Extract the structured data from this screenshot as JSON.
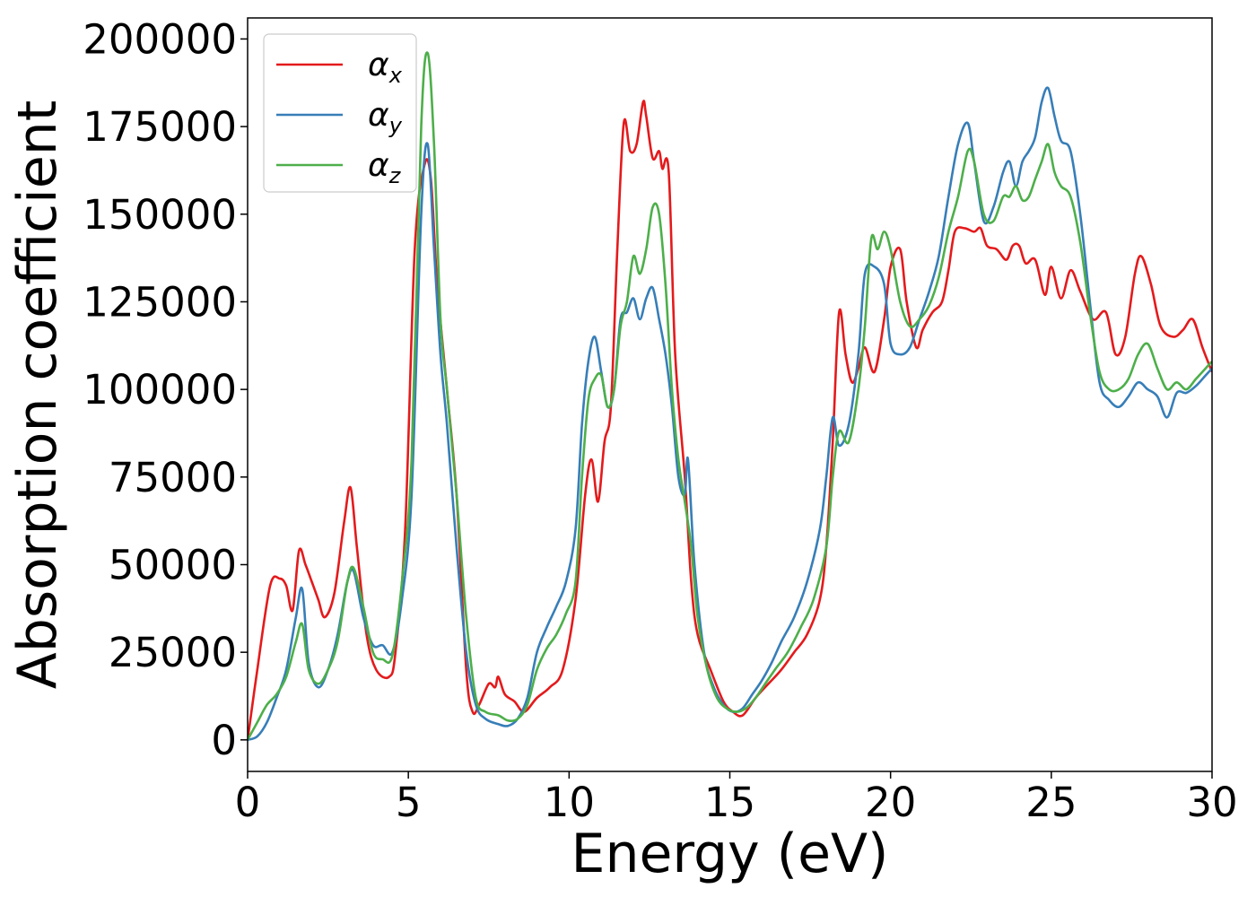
{
  "chart_data": {
    "type": "line",
    "title": "",
    "xlabel": "Energy (eV)",
    "ylabel": "Absorption coefficient",
    "xlim": [
      0,
      30
    ],
    "ylim": [
      -9000,
      206000
    ],
    "xticks": [
      0,
      5,
      10,
      15,
      20,
      25,
      30
    ],
    "yticks": [
      0,
      25000,
      50000,
      75000,
      100000,
      125000,
      150000,
      175000,
      200000
    ],
    "grid": false,
    "legend": {
      "placement": "top-left"
    },
    "series": [
      {
        "name": "αx",
        "symbol": "α",
        "subscript": "x",
        "color": "#e41a1c",
        "x": [
          0,
          0.3,
          0.7,
          1.0,
          1.2,
          1.4,
          1.6,
          1.8,
          2.0,
          2.2,
          2.4,
          2.7,
          3.0,
          3.2,
          3.4,
          3.7,
          4.0,
          4.4,
          4.6,
          4.9,
          5.2,
          5.5,
          5.7,
          5.9,
          6.2,
          6.5,
          6.8,
          7.0,
          7.2,
          7.5,
          7.7,
          7.8,
          8.0,
          8.3,
          8.6,
          9.0,
          9.4,
          9.8,
          10.2,
          10.5,
          10.7,
          10.9,
          11.1,
          11.3,
          11.5,
          11.7,
          11.9,
          12.1,
          12.3,
          12.4,
          12.6,
          12.8,
          12.9,
          13.1,
          13.3,
          13.6,
          13.8,
          14.0,
          14.4,
          14.8,
          15.1,
          15.4,
          15.8,
          16.2,
          16.6,
          17.0,
          17.4,
          17.8,
          18.0,
          18.2,
          18.4,
          18.6,
          18.8,
          19.0,
          19.2,
          19.5,
          19.8,
          20.0,
          20.3,
          20.5,
          20.8,
          21.0,
          21.3,
          21.6,
          21.8,
          22.0,
          22.3,
          22.6,
          22.8,
          23.0,
          23.3,
          23.6,
          23.8,
          24.0,
          24.2,
          24.5,
          24.8,
          25.0,
          25.3,
          25.6,
          25.9,
          26.3,
          26.7,
          27.0,
          27.3,
          27.6,
          27.8,
          28.1,
          28.4,
          28.8,
          29.1,
          29.4,
          29.7,
          30.0
        ],
        "y": [
          0,
          20000,
          44000,
          46000,
          44000,
          37000,
          54000,
          50000,
          45000,
          40000,
          35000,
          42000,
          62000,
          72000,
          55000,
          30000,
          20000,
          18000,
          25000,
          60000,
          140000,
          164000,
          160000,
          130000,
          100000,
          70000,
          20000,
          8000,
          10000,
          16000,
          15000,
          18000,
          13000,
          11000,
          8000,
          12000,
          15000,
          20000,
          40000,
          70000,
          80000,
          68000,
          85000,
          95000,
          140000,
          176000,
          168000,
          170000,
          182000,
          178000,
          166000,
          168000,
          163000,
          162000,
          110000,
          75000,
          45000,
          30000,
          20000,
          11000,
          8000,
          7000,
          12000,
          16000,
          20000,
          25000,
          30000,
          40000,
          55000,
          85000,
          122000,
          110000,
          102000,
          106000,
          112000,
          105000,
          120000,
          135000,
          140000,
          125000,
          112000,
          117000,
          122000,
          125000,
          134000,
          145000,
          146000,
          145000,
          146000,
          141000,
          140000,
          137000,
          141000,
          141000,
          136000,
          137000,
          127000,
          135000,
          126000,
          134000,
          128000,
          120000,
          122000,
          110000,
          115000,
          133000,
          138000,
          130000,
          118000,
          115000,
          117000,
          120000,
          112000,
          105000
        ]
      },
      {
        "name": "αy",
        "symbol": "α",
        "subscript": "y",
        "color": "#377eb8",
        "x": [
          0,
          0.3,
          0.6,
          0.9,
          1.2,
          1.5,
          1.7,
          1.9,
          2.2,
          2.5,
          2.8,
          3.1,
          3.3,
          3.6,
          3.9,
          4.2,
          4.5,
          4.8,
          5.1,
          5.4,
          5.6,
          5.8,
          6.0,
          6.2,
          6.5,
          6.8,
          7.1,
          7.4,
          7.8,
          8.1,
          8.4,
          8.7,
          9.0,
          9.3,
          9.6,
          9.9,
          10.2,
          10.4,
          10.6,
          10.8,
          11.0,
          11.2,
          11.4,
          11.6,
          11.8,
          12.0,
          12.2,
          12.4,
          12.6,
          12.8,
          13.0,
          13.2,
          13.4,
          13.6,
          13.7,
          13.9,
          14.2,
          14.5,
          14.8,
          15.1,
          15.4,
          15.7,
          16.0,
          16.3,
          16.6,
          17.0,
          17.4,
          17.8,
          18.0,
          18.2,
          18.4,
          18.7,
          19.0,
          19.2,
          19.5,
          19.8,
          20.0,
          20.3,
          20.6,
          20.9,
          21.2,
          21.5,
          21.8,
          22.1,
          22.4,
          22.6,
          22.9,
          23.2,
          23.5,
          23.7,
          23.9,
          24.1,
          24.3,
          24.5,
          24.7,
          24.9,
          25.1,
          25.3,
          25.6,
          25.9,
          26.2,
          26.5,
          26.8,
          27.1,
          27.4,
          27.7,
          28.0,
          28.3,
          28.6,
          28.9,
          29.2,
          29.5,
          29.8,
          30.0
        ],
        "y": [
          0,
          1000,
          5000,
          12000,
          20000,
          35000,
          43000,
          22000,
          15000,
          20000,
          30000,
          45000,
          48000,
          35000,
          27000,
          27000,
          25000,
          40000,
          70000,
          150000,
          170000,
          140000,
          110000,
          90000,
          55000,
          25000,
          10000,
          6000,
          4500,
          4000,
          6000,
          12000,
          25000,
          32000,
          38000,
          45000,
          60000,
          90000,
          108000,
          115000,
          105000,
          95000,
          100000,
          120000,
          122000,
          126000,
          120000,
          126000,
          129000,
          120000,
          110000,
          95000,
          75000,
          70000,
          80000,
          50000,
          25000,
          15000,
          10000,
          8000,
          9000,
          13000,
          17000,
          22000,
          28000,
          35000,
          45000,
          60000,
          75000,
          92000,
          84000,
          90000,
          110000,
          133000,
          135000,
          130000,
          113000,
          110000,
          112000,
          120000,
          128000,
          138000,
          155000,
          170000,
          176000,
          165000,
          148000,
          152000,
          162000,
          165000,
          158000,
          165000,
          168000,
          172000,
          182000,
          186000,
          178000,
          171000,
          168000,
          150000,
          125000,
          102000,
          97000,
          95000,
          98000,
          102000,
          100000,
          98000,
          92000,
          99000,
          99000,
          101000,
          104000,
          106000
        ]
      },
      {
        "name": "αz",
        "symbol": "α",
        "subscript": "z",
        "color": "#4daf4a",
        "x": [
          0,
          0.3,
          0.6,
          0.9,
          1.2,
          1.5,
          1.7,
          1.9,
          2.2,
          2.5,
          2.8,
          3.1,
          3.3,
          3.6,
          3.9,
          4.2,
          4.5,
          4.8,
          5.1,
          5.4,
          5.6,
          5.8,
          6.0,
          6.2,
          6.5,
          6.8,
          7.1,
          7.4,
          7.8,
          8.1,
          8.4,
          8.7,
          9.0,
          9.3,
          9.6,
          9.9,
          10.2,
          10.4,
          10.6,
          10.8,
          11.0,
          11.2,
          11.4,
          11.6,
          11.8,
          12.0,
          12.2,
          12.4,
          12.6,
          12.8,
          13.0,
          13.2,
          13.4,
          13.6,
          13.8,
          14.0,
          14.3,
          14.6,
          14.9,
          15.2,
          15.5,
          15.8,
          16.1,
          16.4,
          16.8,
          17.2,
          17.6,
          18.0,
          18.2,
          18.4,
          18.7,
          19.0,
          19.2,
          19.4,
          19.6,
          19.8,
          20.0,
          20.3,
          20.6,
          20.9,
          21.2,
          21.5,
          21.8,
          22.1,
          22.4,
          22.6,
          22.9,
          23.2,
          23.5,
          23.7,
          23.9,
          24.1,
          24.3,
          24.5,
          24.7,
          24.9,
          25.1,
          25.3,
          25.6,
          25.9,
          26.2,
          26.5,
          26.8,
          27.1,
          27.4,
          27.7,
          28.0,
          28.3,
          28.6,
          28.9,
          29.2,
          29.5,
          29.8,
          30.0
        ],
        "y": [
          0,
          5000,
          10000,
          13000,
          18000,
          28000,
          33000,
          20000,
          16000,
          20000,
          28000,
          45000,
          49000,
          38000,
          25000,
          23000,
          24000,
          45000,
          80000,
          175000,
          196000,
          170000,
          120000,
          100000,
          70000,
          35000,
          12000,
          8000,
          7000,
          5500,
          6000,
          10000,
          20000,
          26000,
          30000,
          36000,
          45000,
          75000,
          97000,
          103000,
          104000,
          95000,
          100000,
          118000,
          125000,
          138000,
          133000,
          140000,
          152000,
          150000,
          130000,
          100000,
          80000,
          68000,
          55000,
          35000,
          20000,
          12000,
          9000,
          8000,
          9000,
          12000,
          16000,
          20000,
          25000,
          32000,
          40000,
          55000,
          75000,
          88000,
          85000,
          100000,
          118000,
          143000,
          140000,
          145000,
          140000,
          125000,
          118000,
          120000,
          124000,
          132000,
          145000,
          155000,
          168000,
          165000,
          150000,
          148000,
          155000,
          155000,
          158000,
          154000,
          155000,
          160000,
          165000,
          170000,
          162000,
          158000,
          155000,
          142000,
          122000,
          105000,
          100000,
          100000,
          103000,
          110000,
          113000,
          106000,
          100000,
          102000,
          100000,
          103000,
          106000,
          108000
        ]
      }
    ]
  }
}
